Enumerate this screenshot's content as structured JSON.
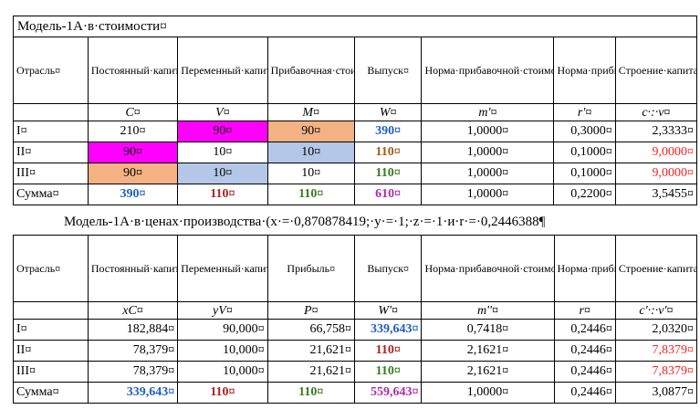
{
  "table1": {
    "title": "Модель-1А·в·стоимости¤",
    "headers": [
      "Отрасль¤",
      "Постоянный·капитал¤",
      "Переменный·капитал¤",
      "Прибавочная·стоимость¤",
      "Выпуск¤",
      "Норма·прибавочной·стоимости¤",
      "Норма·прибыли¤",
      "Строение·капитала¤"
    ],
    "symbols": [
      "C¤",
      "V¤",
      "M¤",
      "W¤",
      "m'¤",
      "r'¤",
      "c·:·v¤"
    ],
    "rows": [
      {
        "label": "I¤",
        "values": [
          "210¤",
          "90¤",
          "90¤",
          "390¤",
          "1,0000¤",
          "0,3000¤",
          "2,3333¤"
        ]
      },
      {
        "label": "II¤",
        "values": [
          "90¤",
          "10¤",
          "10¤",
          "110¤",
          "1,0000¤",
          "0,1000¤",
          "9,0000¤"
        ]
      },
      {
        "label": "III¤",
        "values": [
          "90¤",
          "10¤",
          "10¤",
          "110¤",
          "1,0000¤",
          "0,1000¤",
          "9,0000¤"
        ]
      },
      {
        "label": "Сумма¤",
        "values": [
          "390¤",
          "110¤",
          "110¤",
          "610¤",
          "1,0000¤",
          "0,2200¤",
          "3,5455¤"
        ]
      }
    ]
  },
  "table2": {
    "title": "Модель-1А·в·ценах·производства·(x·=·0,870878419;·y·=·1;·z·=·1·и·r·=·0,2446388¶",
    "headers": [
      "Отрасль¤",
      "Постоянный·капитал¤",
      "Переменный·капитал¤",
      "Прибыль¤",
      "Выпуск¤",
      "Норма·прибавочной·стоимости¤",
      "Норма·прибыли¤",
      "Строение·капитала¤"
    ],
    "symbols": [
      "xC¤",
      "yV¤",
      "P¤",
      "W'¤",
      "m''¤",
      "r¤",
      "c'·:·v'¤"
    ],
    "rows": [
      {
        "label": "I¤",
        "values": [
          "182,884¤",
          "90,000¤",
          "66,758¤",
          "339,643¤",
          "0,7418¤",
          "0,2446¤",
          "2,0320¤"
        ]
      },
      {
        "label": "II¤",
        "values": [
          "78,379¤",
          "10,000¤",
          "21,621¤",
          "110¤",
          "2,1621¤",
          "0,2446¤",
          "7,8379¤"
        ]
      },
      {
        "label": "III¤",
        "values": [
          "78,379¤",
          "10,000¤",
          "21,621¤",
          "110¤",
          "2,1621¤",
          "0,2446¤",
          "7,8379¤"
        ]
      },
      {
        "label": "Сумма¤",
        "values": [
          "339,643¤",
          "110¤",
          "110¤",
          "559,643¤",
          "1,0000¤",
          "0,2446¤",
          "3,0877¤"
        ]
      }
    ]
  },
  "colors": {
    "blue": "#1f5fc4",
    "dark_red": "#b02020",
    "green": "#3a7a1e",
    "red": "#ff2020",
    "purple": "#b02ab0",
    "magenta_fill": "#ff00ff",
    "peach_fill": "#f4b183",
    "lightblue_fill": "#b4c7e7"
  }
}
